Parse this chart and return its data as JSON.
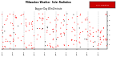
{
  "title": "Milwaukee Weather  Solar Radiation",
  "subtitle": "Avg per Day W/m2/minute",
  "background_color": "#ffffff",
  "ylim": [
    0,
    8
  ],
  "yticks": [
    1,
    2,
    3,
    4,
    5,
    6,
    7
  ],
  "ytick_labels": [
    "1",
    "2",
    "3",
    "4",
    "5",
    "6",
    "7"
  ],
  "legend_label": "Solar Radiation",
  "legend_color": "#cc0000",
  "dot_color_red": "#ff0000",
  "dot_color_black": "#000000",
  "grid_color": "#bbbbbb",
  "num_columns": 40,
  "seed": 42,
  "title_fontsize": 2.0,
  "subtitle_fontsize": 1.8,
  "tick_fontsize": 1.6,
  "dot_size": 0.5
}
